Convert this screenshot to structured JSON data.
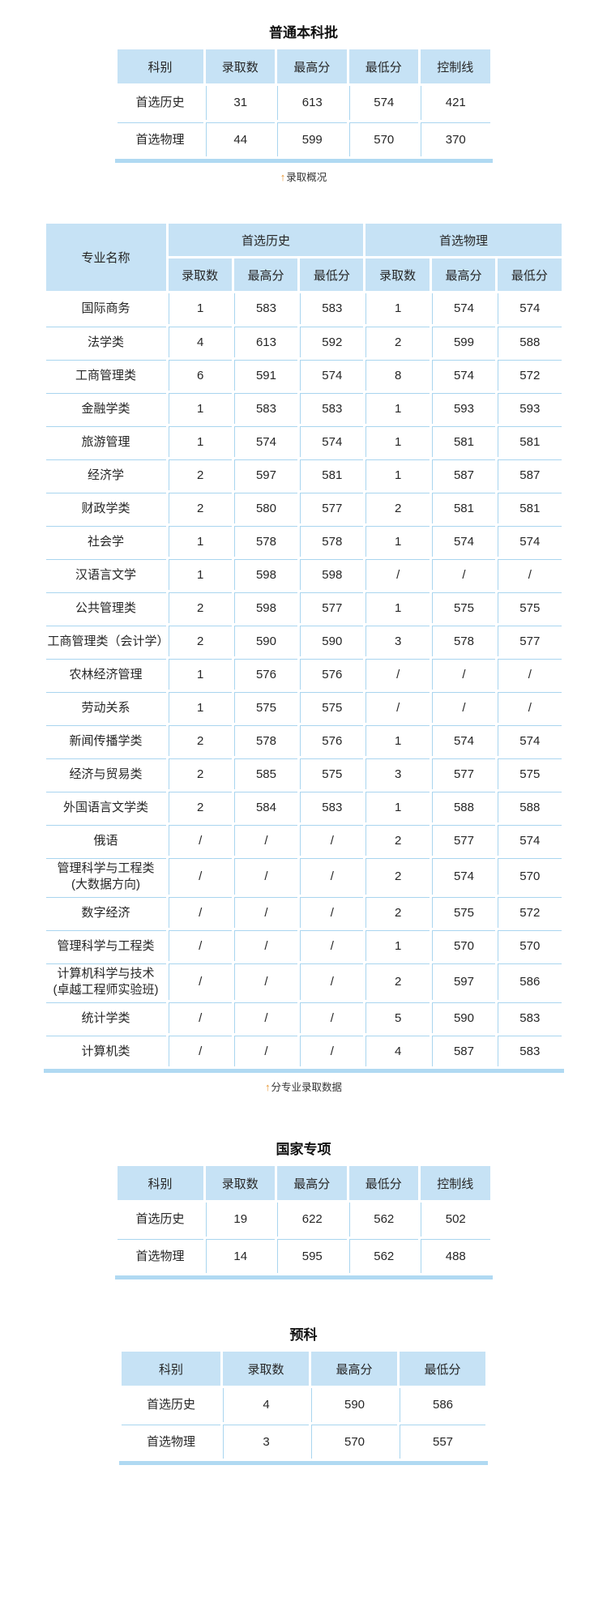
{
  "ui": {
    "arrow": "↑"
  },
  "colors": {
    "header_bg": "#c6e2f5",
    "grid_line": "#a9d5ef",
    "bottom_bar": "#b0d9f2",
    "arrow": "#e8952f"
  },
  "general": {
    "title": "普通本科批",
    "caption": "录取概况",
    "headers": [
      "科别",
      "录取数",
      "最高分",
      "最低分",
      "控制线"
    ],
    "rows": [
      [
        "首选历史",
        "31",
        "613",
        "574",
        "421"
      ],
      [
        "首选物理",
        "44",
        "599",
        "570",
        "370"
      ]
    ]
  },
  "by_major": {
    "name_header": "专业名称",
    "group_history": "首选历史",
    "group_physics": "首选物理",
    "sub_headers": [
      "录取数",
      "最高分",
      "最低分",
      "录取数",
      "最高分",
      "最低分"
    ],
    "caption": "分专业录取数据",
    "rows": [
      [
        "国际商务",
        "1",
        "583",
        "583",
        "1",
        "574",
        "574"
      ],
      [
        "法学类",
        "4",
        "613",
        "592",
        "2",
        "599",
        "588"
      ],
      [
        "工商管理类",
        "6",
        "591",
        "574",
        "8",
        "574",
        "572"
      ],
      [
        "金融学类",
        "1",
        "583",
        "583",
        "1",
        "593",
        "593"
      ],
      [
        "旅游管理",
        "1",
        "574",
        "574",
        "1",
        "581",
        "581"
      ],
      [
        "经济学",
        "2",
        "597",
        "581",
        "1",
        "587",
        "587"
      ],
      [
        "财政学类",
        "2",
        "580",
        "577",
        "2",
        "581",
        "581"
      ],
      [
        "社会学",
        "1",
        "578",
        "578",
        "1",
        "574",
        "574"
      ],
      [
        "汉语言文学",
        "1",
        "598",
        "598",
        "/",
        "/",
        "/"
      ],
      [
        "公共管理类",
        "2",
        "598",
        "577",
        "1",
        "575",
        "575"
      ],
      [
        "工商管理类（会计学）",
        "2",
        "590",
        "590",
        "3",
        "578",
        "577"
      ],
      [
        "农林经济管理",
        "1",
        "576",
        "576",
        "/",
        "/",
        "/"
      ],
      [
        "劳动关系",
        "1",
        "575",
        "575",
        "/",
        "/",
        "/"
      ],
      [
        "新闻传播学类",
        "2",
        "578",
        "576",
        "1",
        "574",
        "574"
      ],
      [
        "经济与贸易类",
        "2",
        "585",
        "575",
        "3",
        "577",
        "575"
      ],
      [
        "外国语言文学类",
        "2",
        "584",
        "583",
        "1",
        "588",
        "588"
      ],
      [
        "俄语",
        "/",
        "/",
        "/",
        "2",
        "577",
        "574"
      ],
      [
        "管理科学与工程类\n(大数据方向)",
        "/",
        "/",
        "/",
        "2",
        "574",
        "570"
      ],
      [
        "数字经济",
        "/",
        "/",
        "/",
        "2",
        "575",
        "572"
      ],
      [
        "管理科学与工程类",
        "/",
        "/",
        "/",
        "1",
        "570",
        "570"
      ],
      [
        "计算机科学与技术\n(卓越工程师实验班)",
        "/",
        "/",
        "/",
        "2",
        "597",
        "586"
      ],
      [
        "统计学类",
        "/",
        "/",
        "/",
        "5",
        "590",
        "583"
      ],
      [
        "计算机类",
        "/",
        "/",
        "/",
        "4",
        "587",
        "583"
      ]
    ]
  },
  "national": {
    "title": "国家专项",
    "headers": [
      "科别",
      "录取数",
      "最高分",
      "最低分",
      "控制线"
    ],
    "rows": [
      [
        "首选历史",
        "19",
        "622",
        "562",
        "502"
      ],
      [
        "首选物理",
        "14",
        "595",
        "562",
        "488"
      ]
    ]
  },
  "preparatory": {
    "title": "预科",
    "headers": [
      "科别",
      "录取数",
      "最高分",
      "最低分"
    ],
    "rows": [
      [
        "首选历史",
        "4",
        "590",
        "586"
      ],
      [
        "首选物理",
        "3",
        "570",
        "557"
      ]
    ]
  }
}
